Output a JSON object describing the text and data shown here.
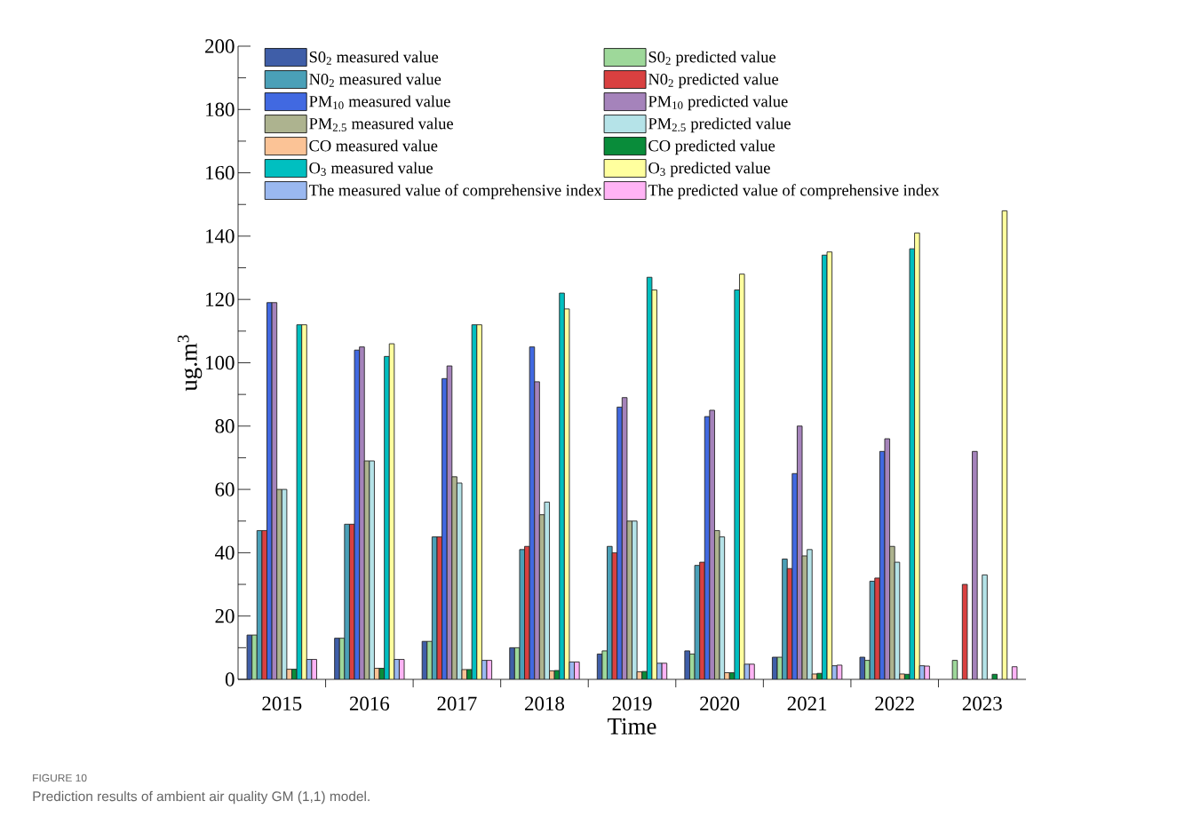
{
  "chart_data": {
    "type": "bar",
    "xlabel": "Time",
    "ylabel": "ug.m$^{3}$",
    "annotations": [
      "FIGURE 10",
      "Prediction results of ambient air quality GM (1,1) model."
    ],
    "categories": [
      "2015",
      "2016",
      "2017",
      "2018",
      "2019",
      "2020",
      "2021",
      "2022",
      "2023"
    ],
    "ylim": [
      0,
      200
    ],
    "yticks": [
      0,
      20,
      40,
      60,
      80,
      100,
      120,
      140,
      160,
      180,
      200
    ],
    "legend": "top",
    "series": [
      {
        "name": "S0$_{2}$ measured value",
        "color": "#3f5ea8",
        "values": [
          14,
          13,
          12,
          10,
          8,
          9,
          7,
          7,
          null
        ]
      },
      {
        "name": "S0$_{2}$ predicted value",
        "color": "#9ed89a",
        "values": [
          14,
          13,
          12,
          10,
          9,
          8,
          7,
          6,
          6
        ]
      },
      {
        "name": "N0$_{2}$ measured value",
        "color": "#4aa0b8",
        "values": [
          47,
          49,
          45,
          41,
          42,
          36,
          38,
          31,
          null
        ]
      },
      {
        "name": "N0$_{2}$ predicted value",
        "color": "#d94040",
        "values": [
          47,
          49,
          45,
          42,
          40,
          37,
          35,
          32,
          30
        ]
      },
      {
        "name": "PM$_{10}$ measured value",
        "color": "#4169e1",
        "values": [
          119,
          104,
          95,
          105,
          86,
          83,
          65,
          72,
          null
        ]
      },
      {
        "name": "PM$_{10}$ predicted value",
        "color": "#a583bb",
        "values": [
          119,
          105,
          99,
          94,
          89,
          85,
          80,
          76,
          72
        ]
      },
      {
        "name": "PM$_{2.5}$ measured value",
        "color": "#adb38f",
        "values": [
          60,
          69,
          64,
          52,
          50,
          47,
          39,
          42,
          null
        ]
      },
      {
        "name": "PM$_{2.5}$ predicted value",
        "color": "#b5e3e8",
        "values": [
          60,
          69,
          62,
          56,
          50,
          45,
          41,
          37,
          33
        ]
      },
      {
        "name": "CO measured value",
        "color": "#fbc396",
        "values": [
          3.2,
          3.5,
          3.1,
          2.7,
          2.4,
          2.1,
          1.7,
          1.7,
          null
        ]
      },
      {
        "name": "CO predicted value",
        "color": "#098c3a",
        "values": [
          3.2,
          3.5,
          3.1,
          2.8,
          2.5,
          2.1,
          1.9,
          1.6,
          1.6
        ]
      },
      {
        "name": "O$_{3}$ measured value",
        "color": "#00bfc0",
        "values": [
          112,
          102,
          112,
          122,
          127,
          123,
          134,
          136,
          null
        ]
      },
      {
        "name": "O$_{3}$ predicted value",
        "color": "#ffff9e",
        "values": [
          112,
          106,
          112,
          117,
          123,
          128,
          135,
          141,
          148
        ]
      },
      {
        "name": "The measured value of comprehensive index",
        "color": "#9ab8f0",
        "values": [
          6.3,
          6.3,
          6,
          5.5,
          5.1,
          4.8,
          4.3,
          4.3,
          null
        ]
      },
      {
        "name": "The predicted value of comprehensive index",
        "color": "#ffb3f5",
        "values": [
          6.3,
          6.3,
          6,
          5.5,
          5.1,
          4.8,
          4.5,
          4.2,
          4.0
        ]
      }
    ]
  }
}
